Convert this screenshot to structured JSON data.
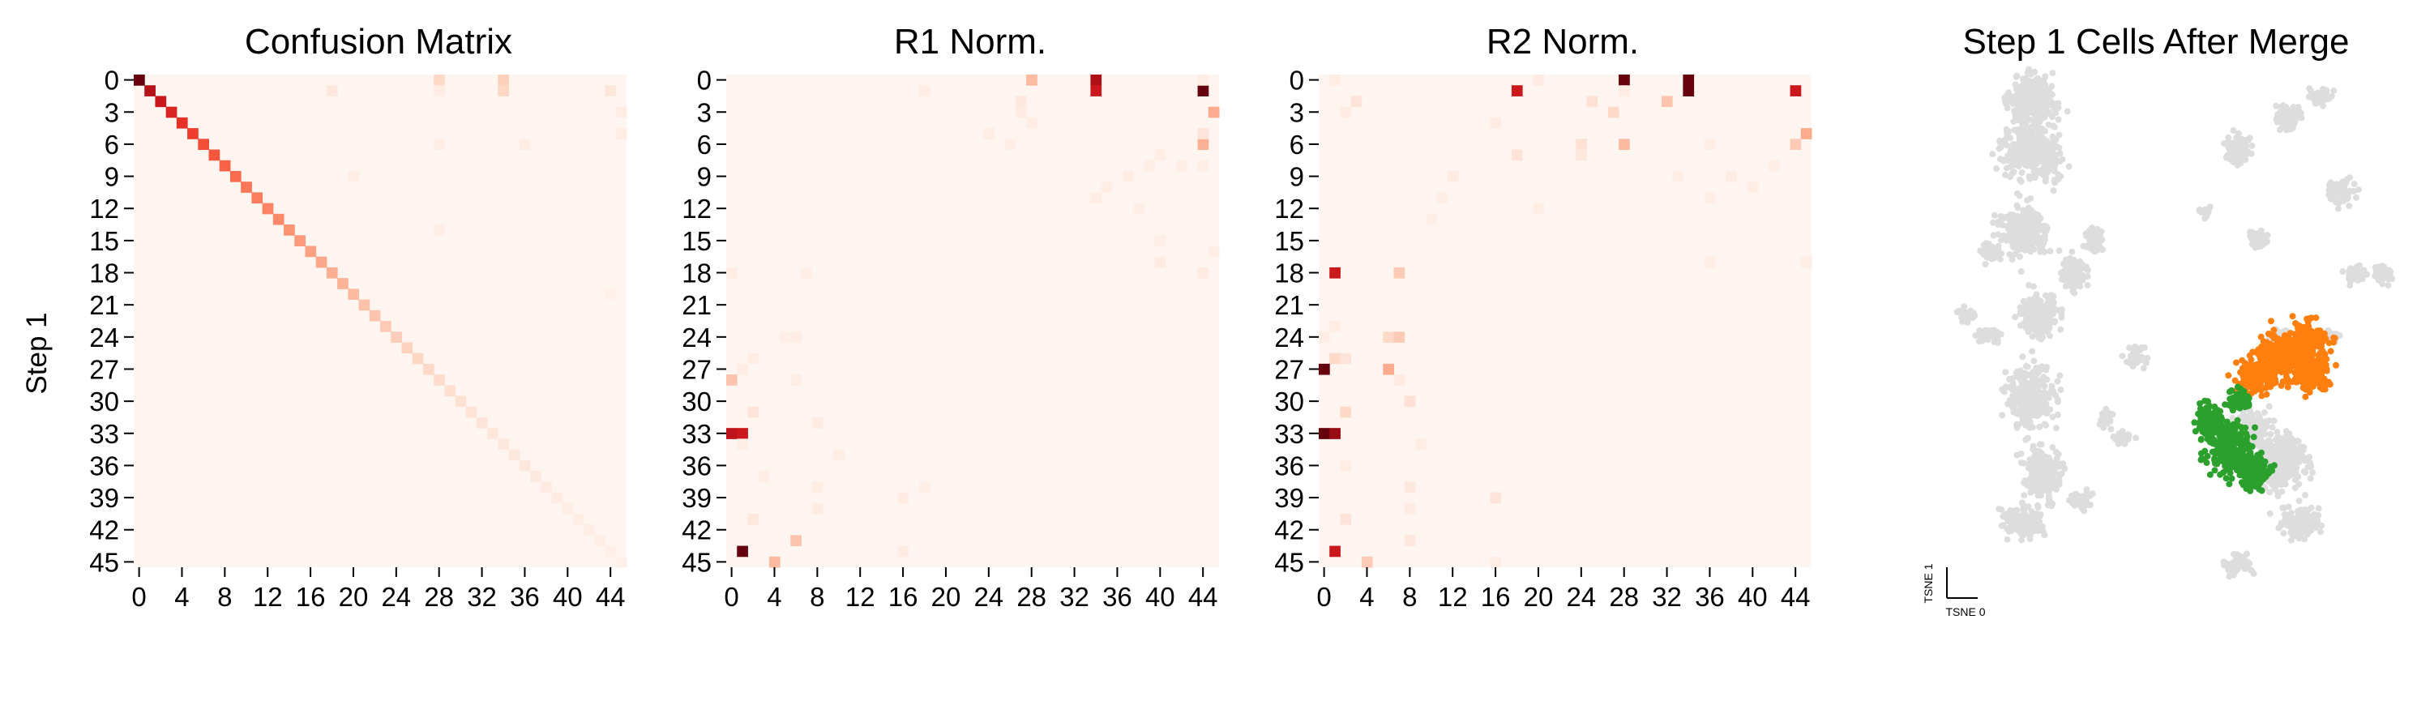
{
  "figure": {
    "ylabel": "Step 1",
    "panels": [
      {
        "title": "Confusion Matrix"
      },
      {
        "title": "R1 Norm."
      },
      {
        "title": "R2 Norm."
      },
      {
        "title": "Step 1 Cells After Merge"
      }
    ]
  },
  "chart_data": [
    {
      "type": "heatmap",
      "title": "Confusion Matrix",
      "ylabel": "Step 1",
      "xlabel": "",
      "n": 46,
      "colormap": "Reds",
      "row_ticks": [
        0,
        3,
        6,
        9,
        12,
        15,
        18,
        21,
        24,
        27,
        30,
        33,
        36,
        39,
        42,
        45
      ],
      "col_ticks": [
        0,
        4,
        8,
        12,
        16,
        20,
        24,
        28,
        32,
        36,
        40,
        44
      ],
      "diagonal": [
        1.0,
        0.82,
        0.75,
        0.7,
        0.66,
        0.62,
        0.58,
        0.55,
        0.52,
        0.49,
        0.46,
        0.44,
        0.42,
        0.4,
        0.37,
        0.35,
        0.33,
        0.31,
        0.29,
        0.27,
        0.25,
        0.23,
        0.22,
        0.2,
        0.19,
        0.17,
        0.16,
        0.15,
        0.14,
        0.13,
        0.12,
        0.11,
        0.1,
        0.09,
        0.085,
        0.08,
        0.075,
        0.07,
        0.065,
        0.06,
        0.055,
        0.05,
        0.045,
        0.04,
        0.035,
        0.03
      ],
      "cells": [
        [
          0,
          28,
          0.15
        ],
        [
          0,
          34,
          0.18
        ],
        [
          1,
          34,
          0.16
        ],
        [
          1,
          18,
          0.08
        ],
        [
          1,
          44,
          0.09
        ],
        [
          1,
          28,
          0.06
        ],
        [
          3,
          46,
          0.05
        ],
        [
          6,
          28,
          0.05
        ],
        [
          6,
          36,
          0.05
        ],
        [
          5,
          46,
          0.05
        ],
        [
          9,
          20,
          0.04
        ],
        [
          14,
          28,
          0.04
        ],
        [
          20,
          44,
          0.03
        ]
      ]
    },
    {
      "type": "heatmap",
      "title": "R1 Norm.",
      "n": 46,
      "colormap": "Reds",
      "row_ticks": [
        0,
        3,
        6,
        9,
        12,
        15,
        18,
        21,
        24,
        27,
        30,
        33,
        36,
        39,
        42,
        45
      ],
      "col_ticks": [
        0,
        4,
        8,
        12,
        16,
        20,
        24,
        28,
        32,
        36,
        40,
        44
      ],
      "diagonal": [],
      "cells": [
        [
          0,
          34,
          0.85
        ],
        [
          1,
          34,
          0.75
        ],
        [
          0,
          28,
          0.25
        ],
        [
          1,
          44,
          1.0
        ],
        [
          0,
          44,
          0.05
        ],
        [
          3,
          45,
          0.3
        ],
        [
          6,
          44,
          0.28
        ],
        [
          5,
          44,
          0.1
        ],
        [
          2,
          27,
          0.08
        ],
        [
          1,
          18,
          0.06
        ],
        [
          3,
          27,
          0.06
        ],
        [
          4,
          28,
          0.05
        ],
        [
          5,
          24,
          0.05
        ],
        [
          7,
          40,
          0.05
        ],
        [
          8,
          39,
          0.05
        ],
        [
          9,
          37,
          0.05
        ],
        [
          10,
          35,
          0.05
        ],
        [
          11,
          34,
          0.05
        ],
        [
          6,
          26,
          0.04
        ],
        [
          8,
          42,
          0.04
        ],
        [
          12,
          38,
          0.04
        ],
        [
          15,
          40,
          0.04
        ],
        [
          16,
          45,
          0.04
        ],
        [
          17,
          40,
          0.06
        ],
        [
          18,
          44,
          0.06
        ],
        [
          8,
          44,
          0.04
        ],
        [
          18,
          0,
          0.05
        ],
        [
          18,
          7,
          0.04
        ],
        [
          24,
          6,
          0.05
        ],
        [
          24,
          5,
          0.04
        ],
        [
          26,
          2,
          0.05
        ],
        [
          27,
          1,
          0.05
        ],
        [
          28,
          0,
          0.22
        ],
        [
          28,
          6,
          0.05
        ],
        [
          31,
          2,
          0.1
        ],
        [
          32,
          8,
          0.06
        ],
        [
          33,
          0,
          0.8
        ],
        [
          33,
          1,
          0.75
        ],
        [
          34,
          1,
          0.04
        ],
        [
          35,
          10,
          0.05
        ],
        [
          37,
          3,
          0.04
        ],
        [
          38,
          8,
          0.05
        ],
        [
          39,
          16,
          0.06
        ],
        [
          40,
          8,
          0.06
        ],
        [
          41,
          2,
          0.08
        ],
        [
          43,
          6,
          0.22
        ],
        [
          44,
          1,
          1.0
        ],
        [
          45,
          4,
          0.25
        ],
        [
          44,
          16,
          0.06
        ],
        [
          38,
          18,
          0.04
        ]
      ]
    },
    {
      "type": "heatmap",
      "title": "R2 Norm.",
      "n": 46,
      "colormap": "Reds",
      "row_ticks": [
        0,
        3,
        6,
        9,
        12,
        15,
        18,
        21,
        24,
        27,
        30,
        33,
        36,
        39,
        42,
        45
      ],
      "col_ticks": [
        0,
        4,
        8,
        12,
        16,
        20,
        24,
        28,
        32,
        36,
        40,
        44
      ],
      "diagonal": [],
      "cells": [
        [
          0,
          28,
          1.0
        ],
        [
          0,
          34,
          1.0
        ],
        [
          1,
          34,
          1.0
        ],
        [
          1,
          18,
          0.75
        ],
        [
          1,
          44,
          0.75
        ],
        [
          1,
          28,
          0.06
        ],
        [
          0,
          20,
          0.06
        ],
        [
          0,
          1,
          0.05
        ],
        [
          2,
          25,
          0.12
        ],
        [
          3,
          27,
          0.15
        ],
        [
          2,
          32,
          0.22
        ],
        [
          2,
          3,
          0.1
        ],
        [
          3,
          2,
          0.06
        ],
        [
          4,
          16,
          0.06
        ],
        [
          5,
          45,
          0.3
        ],
        [
          6,
          24,
          0.12
        ],
        [
          6,
          28,
          0.25
        ],
        [
          6,
          44,
          0.2
        ],
        [
          7,
          18,
          0.1
        ],
        [
          7,
          24,
          0.08
        ],
        [
          6,
          36,
          0.05
        ],
        [
          8,
          42,
          0.04
        ],
        [
          9,
          33,
          0.05
        ],
        [
          10,
          40,
          0.04
        ],
        [
          9,
          12,
          0.06
        ],
        [
          9,
          38,
          0.06
        ],
        [
          10,
          40,
          0.05
        ],
        [
          11,
          36,
          0.04
        ],
        [
          11,
          11,
          0.04
        ],
        [
          13,
          10,
          0.04
        ],
        [
          12,
          20,
          0.05
        ],
        [
          17,
          36,
          0.05
        ],
        [
          17,
          45,
          0.05
        ],
        [
          18,
          1,
          0.75
        ],
        [
          18,
          7,
          0.2
        ],
        [
          23,
          1,
          0.05
        ],
        [
          24,
          0,
          0.05
        ],
        [
          24,
          6,
          0.15
        ],
        [
          24,
          7,
          0.2
        ],
        [
          26,
          1,
          0.15
        ],
        [
          26,
          2,
          0.1
        ],
        [
          27,
          0,
          1.0
        ],
        [
          27,
          6,
          0.3
        ],
        [
          28,
          7,
          0.06
        ],
        [
          30,
          8,
          0.12
        ],
        [
          31,
          2,
          0.15
        ],
        [
          33,
          0,
          1.0
        ],
        [
          33,
          1,
          0.9
        ],
        [
          34,
          9,
          0.05
        ],
        [
          36,
          2,
          0.05
        ],
        [
          38,
          8,
          0.08
        ],
        [
          39,
          16,
          0.1
        ],
        [
          40,
          8,
          0.06
        ],
        [
          41,
          2,
          0.1
        ],
        [
          43,
          8,
          0.08
        ],
        [
          44,
          1,
          0.75
        ],
        [
          45,
          4,
          0.2
        ],
        [
          45,
          16,
          0.05
        ]
      ]
    },
    {
      "type": "scatter",
      "title": "Step 1 Cells After Merge",
      "xlabel": "TSNE 0",
      "ylabel": "TSNE 1",
      "grid": false,
      "legend": "none",
      "colors": {
        "background": "#dddddd",
        "orange": "#ff7f0e",
        "green": "#2ca02c"
      },
      "series": [
        {
          "color": "#dddddd",
          "clusters": [
            [
              -30,
              62,
              8,
              7
            ],
            [
              -30,
              50,
              9,
              8
            ],
            [
              -32,
              30,
              7,
              8
            ],
            [
              -28,
              10,
              6,
              7
            ],
            [
              -30,
              -10,
              7,
              9
            ],
            [
              -27,
              -28,
              6,
              8
            ],
            [
              -40,
              25,
              3,
              3
            ],
            [
              -20,
              20,
              4,
              5
            ],
            [
              -15,
              28,
              3,
              4
            ],
            [
              -32,
              -40,
              6,
              5
            ],
            [
              -18,
              -35,
              3,
              3
            ],
            [
              -12,
              -15,
              2,
              3
            ],
            [
              -8,
              -20,
              3,
              2
            ],
            [
              -46,
              10,
              3,
              2
            ],
            [
              -40,
              5,
              4,
              2
            ],
            [
              -5,
              0,
              3,
              3
            ],
            [
              20,
              50,
              4,
              5
            ],
            [
              32,
              58,
              4,
              4
            ],
            [
              40,
              63,
              4,
              3
            ],
            [
              45,
              40,
              4,
              4
            ],
            [
              48,
              20,
              3,
              3
            ],
            [
              42,
              5,
              3,
              2
            ],
            [
              25,
              28,
              3,
              3
            ],
            [
              30,
              5,
              3,
              2
            ],
            [
              12,
              35,
              2,
              2
            ],
            [
              55,
              20,
              3,
              3
            ],
            [
              30,
              -25,
              8,
              9
            ],
            [
              23,
              -18,
              6,
              6
            ],
            [
              35,
              -40,
              6,
              5
            ],
            [
              20,
              -50,
              4,
              3
            ]
          ]
        },
        {
          "color": "#ff7f0e",
          "clusters": [
            [
              30,
              0,
              9,
              7
            ],
            [
              36,
              4,
              7,
              6
            ],
            [
              24,
              -5,
              6,
              5
            ],
            [
              38,
              -4,
              5,
              6
            ]
          ]
        },
        {
          "color": "#2ca02c",
          "clusters": [
            [
              18,
              -22,
              7,
              8
            ],
            [
              13,
              -16,
              4,
              6
            ],
            [
              24,
              -28,
              5,
              5
            ],
            [
              20,
              -10,
              4,
              3
            ]
          ]
        }
      ]
    }
  ]
}
